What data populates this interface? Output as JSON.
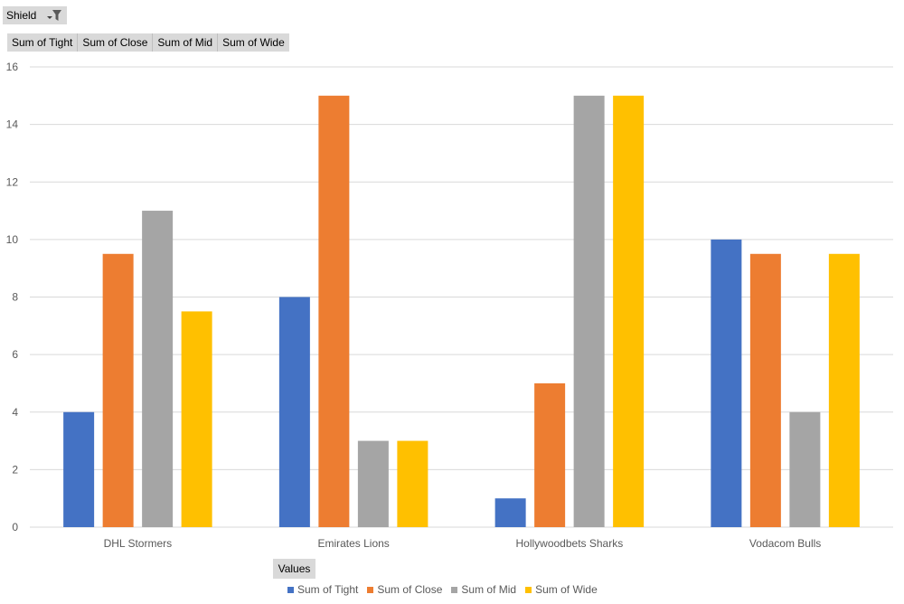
{
  "filter": {
    "label": "Shield"
  },
  "value_fields": [
    "Sum of Tight",
    "Sum of Close",
    "Sum of Mid",
    "Sum of Wide"
  ],
  "values_button": "Values",
  "colors": {
    "tight": "#4472C4",
    "close": "#ED7D31",
    "mid": "#A5A5A5",
    "wide": "#FFC000",
    "grid": "#d9d9d9",
    "text": "#595959"
  },
  "chart_data": {
    "type": "bar",
    "title": "",
    "xlabel": "",
    "ylabel": "",
    "categories": [
      "DHL Stormers",
      "Emirates Lions",
      "Hollywoodbets Sharks",
      "Vodacom Bulls"
    ],
    "series": [
      {
        "name": "Sum of Tight",
        "color": "#4472C4",
        "values": [
          4,
          8,
          1,
          10
        ]
      },
      {
        "name": "Sum of Close",
        "color": "#ED7D31",
        "values": [
          9.5,
          15,
          5,
          9.5
        ]
      },
      {
        "name": "Sum of Mid",
        "color": "#A5A5A5",
        "values": [
          11,
          3,
          15,
          4
        ]
      },
      {
        "name": "Sum of Wide",
        "color": "#FFC000",
        "values": [
          7.5,
          3,
          15,
          9.5
        ]
      }
    ],
    "ylim": [
      0,
      16
    ],
    "yticks": [
      0,
      2,
      4,
      6,
      8,
      10,
      12,
      14,
      16
    ],
    "grid": true,
    "legend": "bottom"
  }
}
